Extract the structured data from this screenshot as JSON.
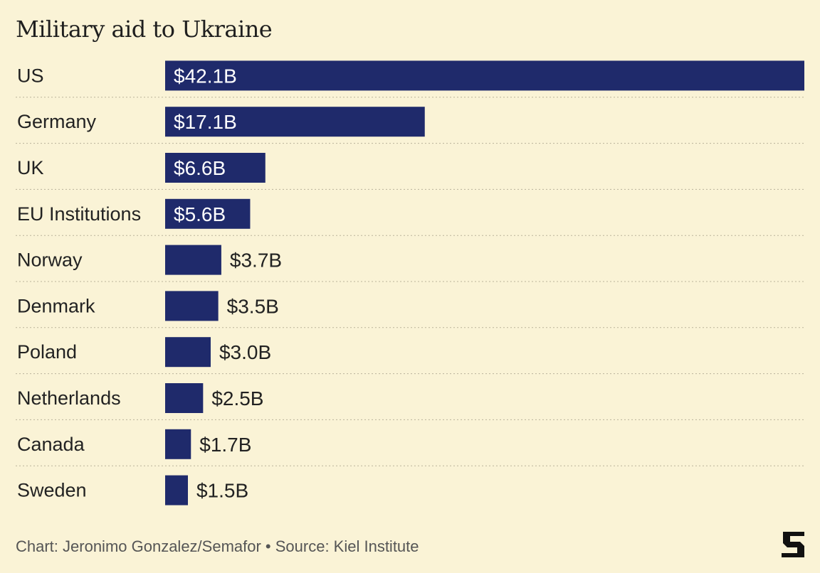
{
  "chart_data": {
    "type": "bar",
    "orientation": "horizontal",
    "title": "Military aid to Ukraine",
    "categories": [
      "US",
      "Germany",
      "UK",
      "EU Institutions",
      "Norway",
      "Denmark",
      "Poland",
      "Netherlands",
      "Canada",
      "Sweden"
    ],
    "values": [
      42.1,
      17.1,
      6.6,
      5.6,
      3.7,
      3.5,
      3.0,
      2.5,
      1.7,
      1.5
    ],
    "labels": [
      "$42.1B",
      "$17.1B",
      "$6.6B",
      "$5.6B",
      "$3.7B",
      "$3.5B",
      "$3.0B",
      "$2.5B",
      "$1.7B",
      "$1.5B"
    ],
    "unit": "$B",
    "xlim": [
      0,
      42.1
    ],
    "grid": false,
    "bar_color": "#1f2a6b"
  },
  "footer": {
    "credit": "Chart: Jeronimo Gonzalez/Semafor • Source: Kiel Institute"
  },
  "logo": {
    "icon": "semafor-logo-icon"
  }
}
